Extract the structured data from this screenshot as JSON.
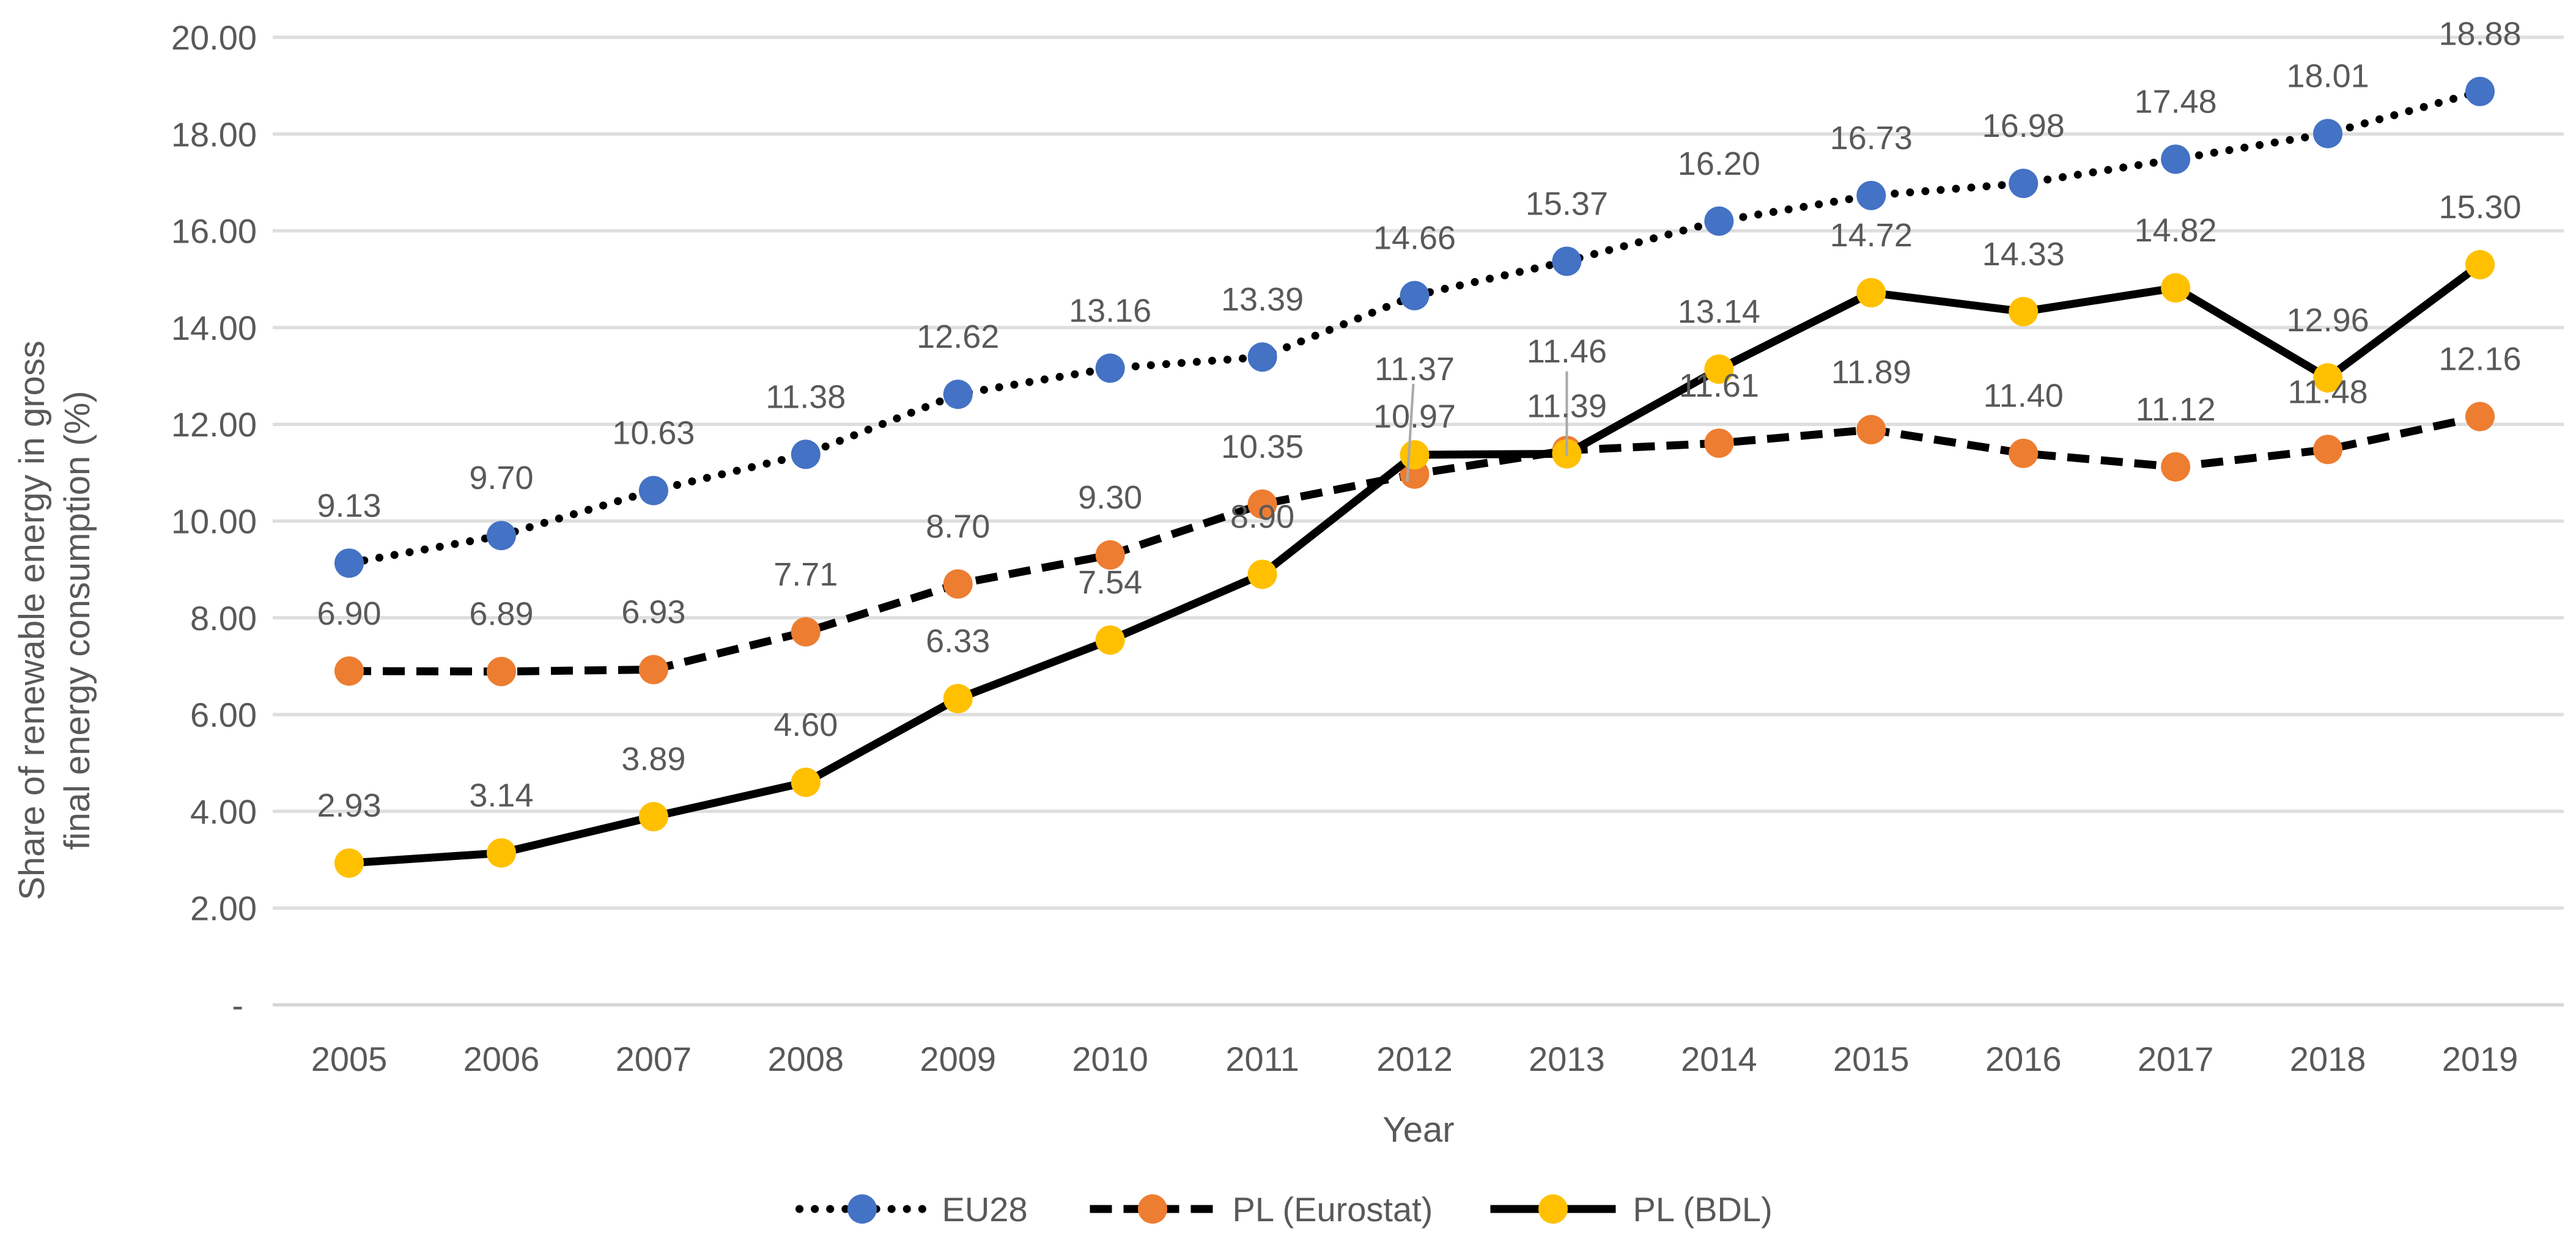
{
  "chart_data": {
    "type": "line",
    "title": "",
    "xlabel": "Year",
    "ylabel": "Share of renewable energy in gross final energy consumption (%)",
    "ylabel_lines": [
      "Share of renewable energy in gross",
      "final energy consumption (%)"
    ],
    "categories": [
      "2005",
      "2006",
      "2007",
      "2008",
      "2009",
      "2010",
      "2011",
      "2012",
      "2013",
      "2014",
      "2015",
      "2016",
      "2017",
      "2018",
      "2019"
    ],
    "series": [
      {
        "name": "EU28",
        "line_style": "dotted",
        "line_color": "#000000",
        "marker_color": "#4472C4",
        "values": [
          9.13,
          9.7,
          10.63,
          11.38,
          12.62,
          13.16,
          13.39,
          14.66,
          15.37,
          16.2,
          16.73,
          16.98,
          17.48,
          18.01,
          18.88
        ]
      },
      {
        "name": "PL (Eurostat)",
        "line_style": "dashed",
        "line_color": "#000000",
        "marker_color": "#ED7D31",
        "values": [
          6.9,
          6.89,
          6.93,
          7.71,
          8.7,
          9.3,
          10.35,
          10.97,
          11.46,
          11.61,
          11.89,
          11.4,
          11.12,
          11.48,
          12.16
        ]
      },
      {
        "name": "PL (BDL)",
        "line_style": "solid",
        "line_color": "#000000",
        "marker_color": "#FFC000",
        "values": [
          2.93,
          3.14,
          3.89,
          4.6,
          6.33,
          7.54,
          8.9,
          11.37,
          11.39,
          13.14,
          14.72,
          14.33,
          14.82,
          12.96,
          15.3
        ]
      }
    ],
    "y_axis": {
      "min": 0,
      "max": 20,
      "step": 2,
      "tick_labels": [
        "-",
        "2.00",
        "4.00",
        "6.00",
        "8.00",
        "10.00",
        "12.00",
        "14.00",
        "16.00",
        "18.00",
        "20.00"
      ]
    },
    "grid": true,
    "legend_position": "bottom",
    "label_format": "0.00",
    "data_label_color": "#595959",
    "tick_label_color": "#595959",
    "gridline_color": "#DEDEDE",
    "axis_line_color": "#D6D6D6",
    "leader_line_color": "#A9A9A9"
  }
}
